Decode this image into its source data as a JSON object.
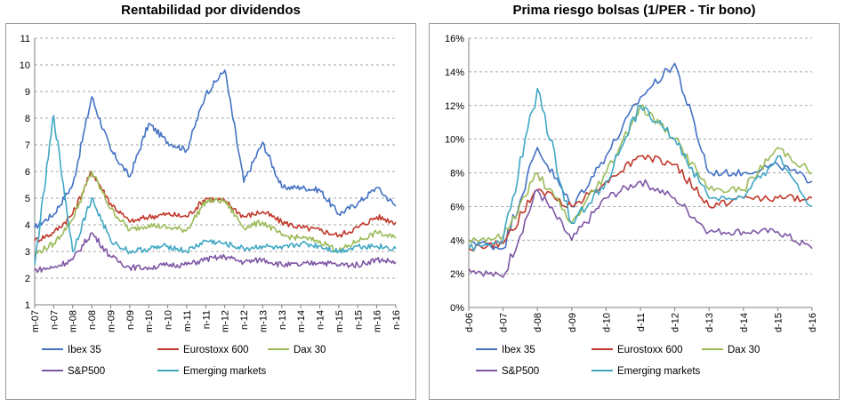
{
  "colors": {
    "ibex": "#4472C4",
    "eurostoxx": "#C0392B",
    "dax": "#9BBB59",
    "sp500": "#7E57A5",
    "emerging": "#3FA7C4",
    "grid": "#8c8c8c",
    "axis": "#808080"
  },
  "chart_data": [
    {
      "type": "line",
      "title": "Rentabilidad por dividendos",
      "xlabel": "",
      "ylabel": "",
      "ylim": [
        1,
        11
      ],
      "yticks": [
        "1",
        "2",
        "3",
        "4",
        "5",
        "6",
        "7",
        "8",
        "9",
        "10",
        "11"
      ],
      "categories": [
        "m-07",
        "n-07",
        "m-08",
        "n-08",
        "m-09",
        "n-09",
        "m-10",
        "n-10",
        "m-11",
        "n-11",
        "m-12",
        "n-12",
        "m-13",
        "n-13",
        "m-14",
        "n-14",
        "m-15",
        "n-15",
        "m-16",
        "n-16"
      ],
      "series": [
        {
          "name": "Ibex 35",
          "color_key": "ibex",
          "values": [
            3.9,
            4.4,
            5.5,
            8.8,
            6.8,
            5.8,
            7.8,
            7.1,
            6.8,
            8.9,
            9.8,
            5.6,
            7.1,
            5.4,
            5.4,
            5.3,
            4.4,
            4.8,
            5.4,
            4.7
          ]
        },
        {
          "name": "Eurostoxx 600",
          "color_key": "eurostoxx",
          "values": [
            3.4,
            3.7,
            4.4,
            6.0,
            4.8,
            4.1,
            4.3,
            4.4,
            4.3,
            5.0,
            4.9,
            4.3,
            4.5,
            4.1,
            3.9,
            3.8,
            3.6,
            3.9,
            4.3,
            4.1
          ]
        },
        {
          "name": "Dax 30",
          "color_key": "dax",
          "values": [
            2.9,
            3.3,
            4.2,
            6.0,
            4.6,
            3.8,
            4.0,
            3.9,
            3.8,
            4.9,
            4.9,
            3.9,
            4.1,
            3.6,
            3.5,
            3.4,
            3.0,
            3.4,
            3.7,
            3.5
          ]
        },
        {
          "name": "S&P500",
          "color_key": "sp500",
          "values": [
            2.3,
            2.4,
            2.7,
            3.7,
            2.8,
            2.4,
            2.4,
            2.5,
            2.5,
            2.7,
            2.8,
            2.6,
            2.7,
            2.5,
            2.5,
            2.6,
            2.5,
            2.5,
            2.7,
            2.6
          ]
        },
        {
          "name": "Emerging markets",
          "color_key": "emerging",
          "values": [
            2.5,
            8.1,
            3.0,
            5.0,
            3.4,
            3.0,
            3.1,
            3.2,
            3.0,
            3.4,
            3.3,
            3.1,
            3.2,
            3.1,
            3.3,
            3.2,
            3.0,
            3.2,
            3.2,
            3.1
          ]
        }
      ],
      "legend": "bottom"
    },
    {
      "type": "line",
      "title": "Prima riesgo bolsas (1/PER - Tir bono)",
      "xlabel": "",
      "ylabel": "",
      "ylim": [
        0,
        16
      ],
      "yticks": [
        "0%",
        "2%",
        "4%",
        "6%",
        "8%",
        "10%",
        "12%",
        "14%",
        "16%"
      ],
      "categories": [
        "d-06",
        "d-07",
        "d-08",
        "d-09",
        "d-10",
        "d-11",
        "d-12",
        "d-13",
        "d-14",
        "d-15",
        "d-16"
      ],
      "series": [
        {
          "name": "Ibex 35",
          "color_key": "ibex",
          "values": [
            4.0,
            3.5,
            9.5,
            6.0,
            9.0,
            12.5,
            14.5,
            8.0,
            8.0,
            8.5,
            7.5
          ]
        },
        {
          "name": "Eurostoxx 600",
          "color_key": "eurostoxx",
          "values": [
            3.5,
            3.8,
            7.0,
            6.0,
            7.5,
            9.0,
            8.5,
            6.0,
            6.5,
            6.5,
            6.5
          ]
        },
        {
          "name": "Dax 30",
          "color_key": "dax",
          "values": [
            4.0,
            4.2,
            8.0,
            5.0,
            8.0,
            12.0,
            10.0,
            7.0,
            7.0,
            9.5,
            8.0
          ]
        },
        {
          "name": "S&P500",
          "color_key": "sp500",
          "values": [
            2.3,
            1.8,
            7.0,
            4.0,
            6.5,
            7.5,
            6.5,
            4.5,
            4.5,
            4.5,
            3.5
          ]
        },
        {
          "name": "Emerging markets",
          "color_key": "emerging",
          "values": [
            3.5,
            4.0,
            13.0,
            5.0,
            7.5,
            12.0,
            10.0,
            6.5,
            6.5,
            9.0,
            6.0
          ]
        }
      ],
      "legend": "bottom"
    }
  ]
}
